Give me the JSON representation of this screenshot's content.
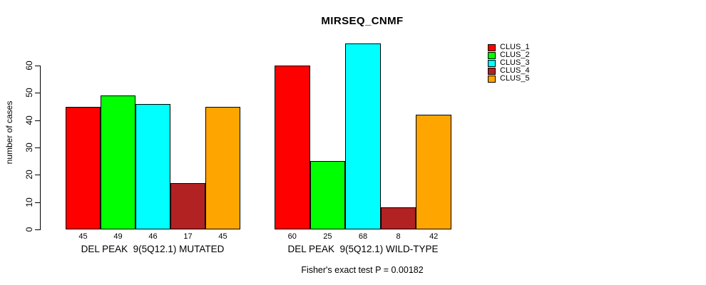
{
  "chart_data": {
    "type": "bar",
    "title": "MIRSEQ_CNMF",
    "ylabel": "number of cases",
    "xlabel": "",
    "ylim": [
      0,
      68
    ],
    "yticks": [
      0,
      10,
      20,
      30,
      40,
      50,
      60
    ],
    "grid": false,
    "legend_position": "right-outside-top",
    "categories": [
      "DEL PEAK  9(5Q12.1) MUTATED",
      "DEL PEAK  9(5Q12.1) WILD-TYPE"
    ],
    "series": [
      {
        "name": "CLUS_1",
        "color": "#FF0000",
        "values": [
          45,
          60
        ]
      },
      {
        "name": "CLUS_2",
        "color": "#00FF00",
        "values": [
          49,
          25
        ]
      },
      {
        "name": "CLUS_3",
        "color": "#00FFFF",
        "values": [
          46,
          68
        ]
      },
      {
        "name": "CLUS_4",
        "color": "#B22222",
        "values": [
          17,
          8
        ]
      },
      {
        "name": "CLUS_5",
        "color": "#FFA500",
        "values": [
          45,
          42
        ]
      }
    ],
    "bar_value_labels": [
      [
        "45",
        "49",
        "46",
        "17",
        "45"
      ],
      [
        "60",
        "25",
        "68",
        "8",
        "42"
      ]
    ],
    "annotation": "Fisher's exact test P = 0.00182"
  }
}
